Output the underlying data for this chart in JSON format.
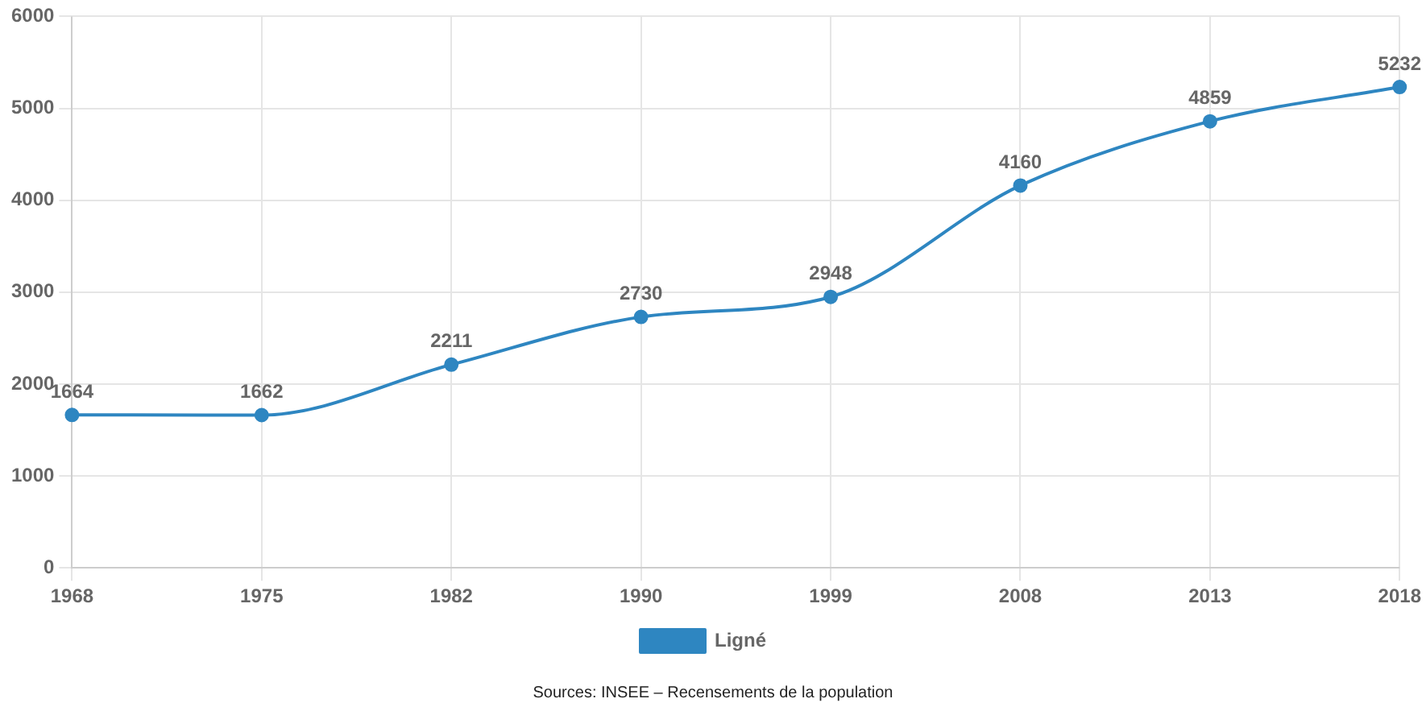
{
  "chart_data": {
    "type": "line",
    "categories": [
      "1968",
      "1975",
      "1982",
      "1990",
      "1999",
      "2008",
      "2013",
      "2018"
    ],
    "series": [
      {
        "name": "Ligné",
        "color": "#2e86c1",
        "values": [
          1664,
          1662,
          2211,
          2730,
          2948,
          4160,
          4859,
          5232
        ]
      }
    ],
    "ylim": [
      0,
      6000
    ],
    "yticks": [
      0,
      1000,
      2000,
      3000,
      4000,
      5000,
      6000
    ],
    "grid": true,
    "legend": "bottom",
    "marker": "circle",
    "line_style": "solid",
    "data_labels": true,
    "annotations": [
      "Sources: INSEE – Recensements de la population"
    ]
  }
}
